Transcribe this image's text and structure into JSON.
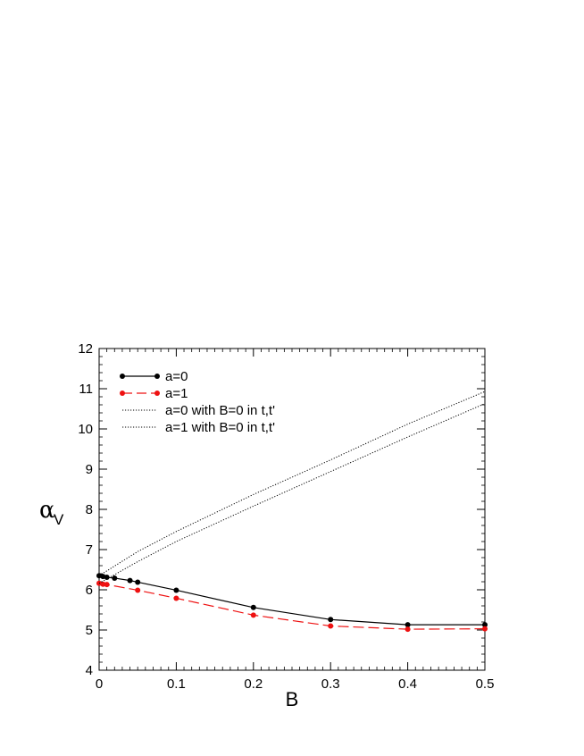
{
  "chart_data": {
    "type": "line",
    "xlabel": "B",
    "ylabel": {
      "symbol": "α",
      "subscript": "V"
    },
    "xlim": [
      0,
      0.5
    ],
    "ylim": [
      4,
      12
    ],
    "xticks": [
      0,
      0.1,
      0.2,
      0.3,
      0.4,
      0.5
    ],
    "xtick_labels": [
      "0",
      "0.1",
      "0.2",
      "0.3",
      "0.4",
      "0.5"
    ],
    "yticks": [
      4,
      5,
      6,
      7,
      8,
      9,
      10,
      11,
      12
    ],
    "ytick_labels": [
      "4",
      "5",
      "6",
      "7",
      "8",
      "9",
      "10",
      "11",
      "12"
    ],
    "grid": false,
    "legend_position": "top-left",
    "series": [
      {
        "name": "a=0",
        "style": "solid",
        "markers": true,
        "color": "#000000",
        "x": [
          0,
          0.005,
          0.01,
          0.02,
          0.04,
          0.05,
          0.1,
          0.2,
          0.3,
          0.4,
          0.5
        ],
        "y": [
          6.35,
          6.33,
          6.31,
          6.29,
          6.23,
          6.19,
          5.99,
          5.56,
          5.26,
          5.13,
          5.13
        ]
      },
      {
        "name": "a=1",
        "style": "dashed",
        "markers": true,
        "color": "#ee1111",
        "x": [
          0,
          0.005,
          0.01,
          0.05,
          0.1,
          0.2,
          0.3,
          0.4,
          0.5
        ],
        "y": [
          6.16,
          6.14,
          6.13,
          5.99,
          5.79,
          5.37,
          5.1,
          5.02,
          5.03
        ]
      },
      {
        "name": "a=0 with B=0 in t,t'",
        "style": "dotted",
        "markers": false,
        "color": "#000000",
        "x": [
          0,
          0.05,
          0.1,
          0.2,
          0.3,
          0.4,
          0.5
        ],
        "y": [
          6.35,
          6.95,
          7.45,
          8.37,
          9.23,
          10.12,
          10.93
        ]
      },
      {
        "name": "a=1 with B=0 in t,t'",
        "style": "dotted",
        "markers": false,
        "color": "#000000",
        "x": [
          0,
          0.05,
          0.1,
          0.2,
          0.3,
          0.4,
          0.5
        ],
        "y": [
          6.16,
          6.7,
          7.2,
          8.08,
          8.94,
          9.8,
          10.63
        ]
      }
    ]
  }
}
